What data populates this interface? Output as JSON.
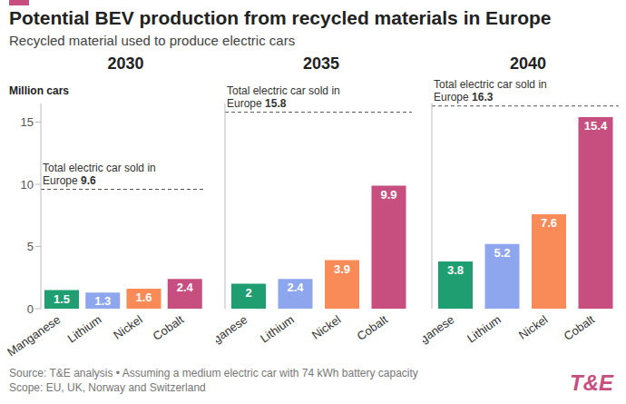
{
  "title": "Potential BEV production from recycled materials in Europe",
  "subtitle": "Recycled material used to produce electric cars",
  "source": "Source: T&E analysis • Assuming a medium electric car with 74 kWh battery capacity",
  "scope": "Scope: EU, UK, Norway and Switzerland",
  "logo": "T&E",
  "chart_data": [
    {
      "type": "bar",
      "title": "2030",
      "y_label": "Million cars",
      "categories": [
        "Manganese",
        "Lithium",
        "Nickel",
        "Cobalt"
      ],
      "values": [
        1.5,
        1.3,
        1.6,
        2.4
      ],
      "colors": [
        "#1f9e72",
        "#8ea6ee",
        "#f98b58",
        "#c74f7f"
      ],
      "ylim": [
        0,
        16.5
      ],
      "yticks": [
        0,
        5,
        10,
        15
      ],
      "grid": false,
      "data_labels": true,
      "reference_line": {
        "label": "Total electric car sold in Europe",
        "value": 9.6
      }
    },
    {
      "type": "bar",
      "title": "2035",
      "categories": [
        "Manganese",
        "Lithium",
        "Nickel",
        "Cobalt"
      ],
      "values": [
        2,
        2.4,
        3.9,
        9.9
      ],
      "colors": [
        "#1f9e72",
        "#8ea6ee",
        "#f98b58",
        "#c74f7f"
      ],
      "ylim": [
        0,
        16.5
      ],
      "yticks": [
        0,
        5,
        10,
        15
      ],
      "grid": false,
      "data_labels": true,
      "tick_labels": "x",
      "reference_line": {
        "label": "Total electric car sold in Europe",
        "value": 15.8
      }
    },
    {
      "type": "bar",
      "title": "2040",
      "categories": [
        "Manganese",
        "Lithium",
        "Nickel",
        "Cobalt"
      ],
      "values": [
        3.8,
        5.2,
        7.6,
        15.4
      ],
      "colors": [
        "#1f9e72",
        "#8ea6ee",
        "#f98b58",
        "#c74f7f"
      ],
      "ylim": [
        0,
        16.5
      ],
      "yticks": [
        0,
        5,
        10,
        15
      ],
      "grid": false,
      "data_labels": true,
      "tick_labels": "x",
      "reference_line": {
        "label": "Total electric car sold in Europe",
        "value": 16.3
      }
    }
  ]
}
